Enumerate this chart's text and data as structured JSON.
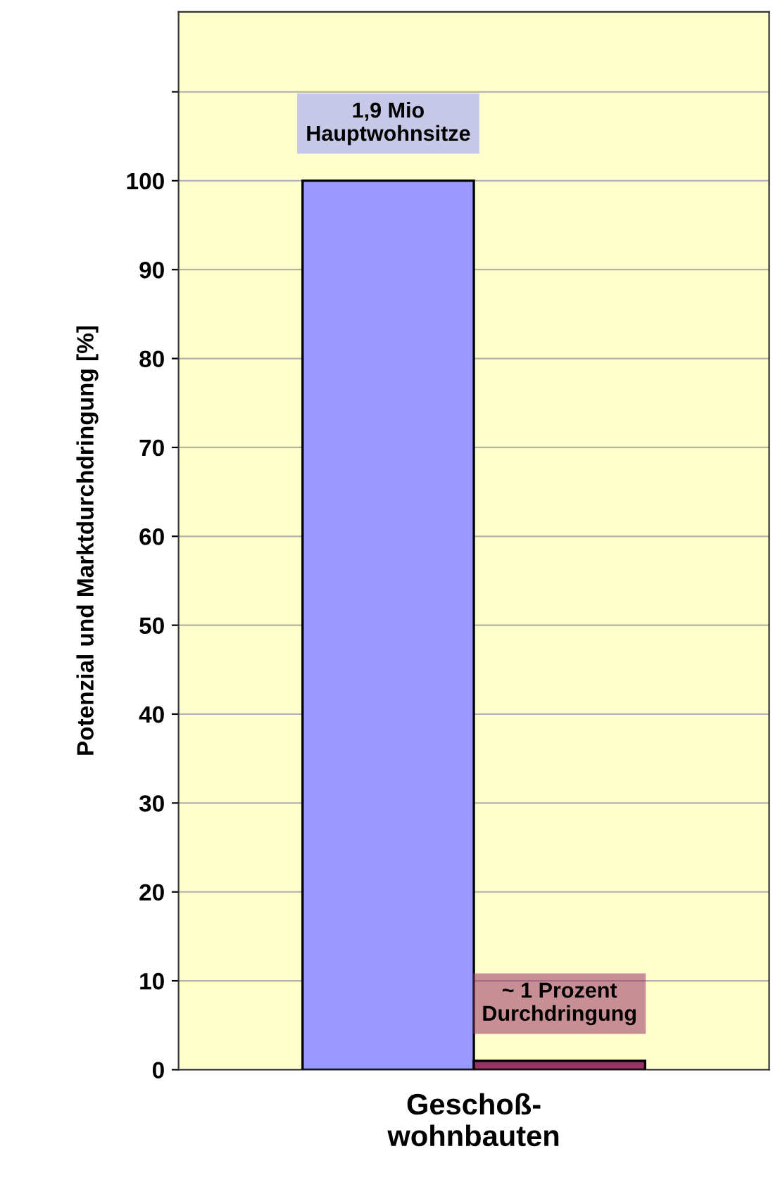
{
  "chart_data": {
    "type": "bar",
    "ylabel": "Potenzial und Marktdurchdringung [%]",
    "categories": [
      "Geschoß-\nwohnbauten"
    ],
    "series": [
      {
        "color": "#9999ff",
        "values": [
          100
        ]
      },
      {
        "color": "#993366",
        "values": [
          1
        ]
      }
    ],
    "annotations": [
      "1,9 Mio\nHauptwohnsitze",
      "~ 1 Prozent\nDurchdringung"
    ],
    "ylim": [
      0,
      119
    ],
    "yticks": [
      0,
      10,
      20,
      30,
      40,
      50,
      60,
      70,
      80,
      90,
      100,
      {
        "value": 110,
        "label": null
      }
    ],
    "grid": "y",
    "legend": false
  }
}
